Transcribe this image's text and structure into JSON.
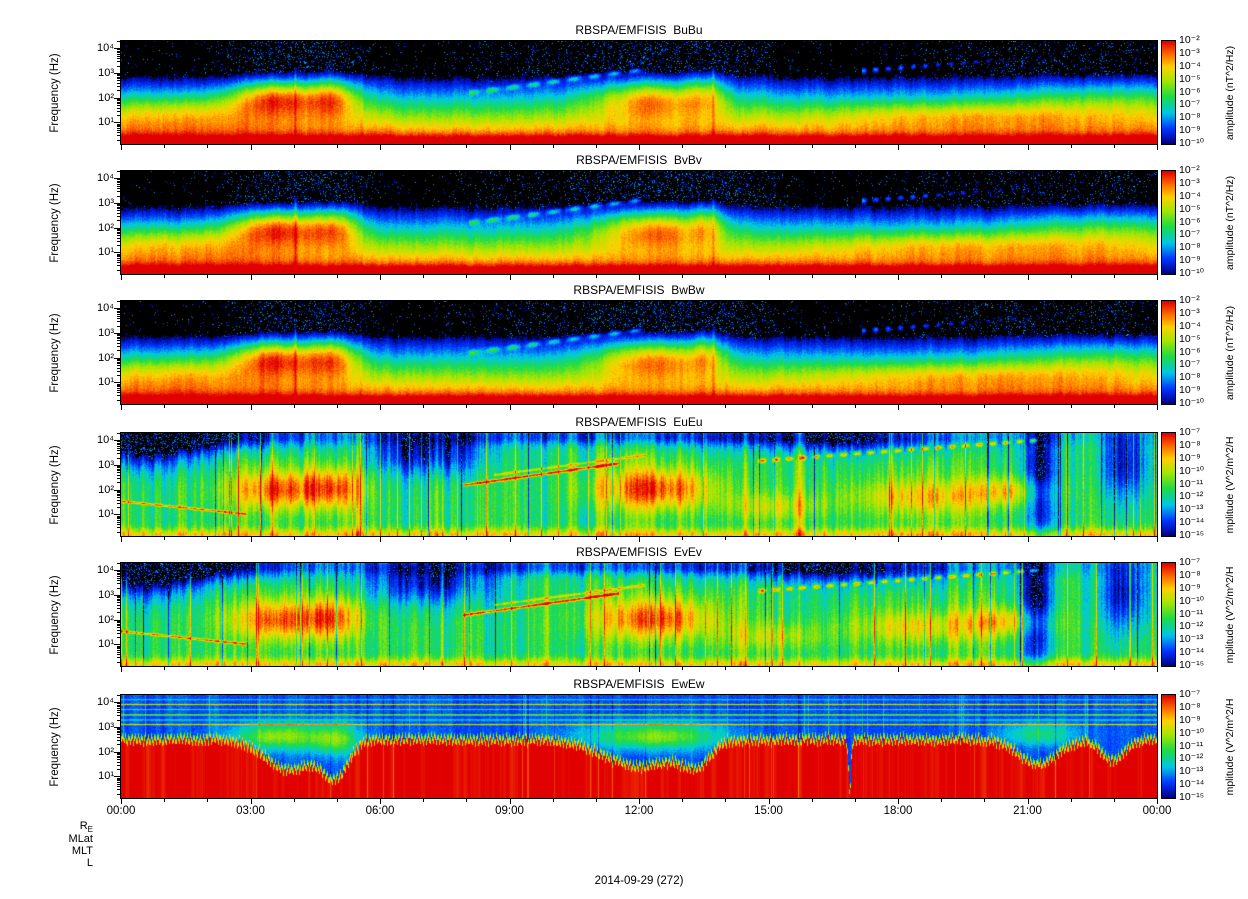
{
  "chart_data": {
    "type": "heatmap",
    "subtype": "stacked-spectrograms",
    "description": "Six 24-hour wave-power spectrograms from RBSP-A/EMFISIS: three magnetic spectral-matrix diagonal components (BuBu, BvBv, BwBw) and three electric components (EuEu, EvEv, EwEw). Log frequency axis ~2 Hz to ~20 kHz, rainbow colormap, black = below colorbar minimum.",
    "time_axis": {
      "tick_labels": [
        "00:00",
        "03:00",
        "06:00",
        "09:00",
        "12:00",
        "15:00",
        "18:00",
        "21:00",
        "00:00"
      ],
      "span_hours": 24,
      "date": "2014-09-29 (272)"
    },
    "frequency_axis": {
      "label": "Frequency (Hz)",
      "scale": "log",
      "tick_labels": [
        "10⁴",
        "10³",
        "10²",
        "10¹"
      ],
      "range_hz": [
        2,
        20000
      ]
    },
    "ephemeris_rows": [
      {
        "main": "R",
        "sub": "E"
      },
      {
        "main": "MLat",
        "sub": ""
      },
      {
        "main": "MLT",
        "sub": ""
      },
      {
        "main": "L",
        "sub": ""
      }
    ],
    "colormap": {
      "scale": "rainbow",
      "below_min_color": "#000000"
    },
    "panels": [
      {
        "id": "BuBu",
        "title": "RBSPA/EMFISIS  BuBu",
        "colorbar_label": "amplitude (nT^2/Hz)",
        "colorbar_tick_labels": [
          "10⁻²",
          "10⁻³",
          "10⁻⁴",
          "10⁻⁵",
          "10⁻⁶",
          "10⁻⁷",
          "10⁻⁸",
          "10⁻⁹",
          "10⁻¹⁰"
        ],
        "colorbar_range": [
          1e-10,
          0.01
        ]
      },
      {
        "id": "BvBv",
        "title": "RBSPA/EMFISIS  BvBv",
        "colorbar_label": "amplitude (nT^2/Hz)",
        "colorbar_tick_labels": [
          "10⁻²",
          "10⁻³",
          "10⁻⁴",
          "10⁻⁵",
          "10⁻⁶",
          "10⁻⁷",
          "10⁻⁸",
          "10⁻⁹",
          "10⁻¹⁰"
        ],
        "colorbar_range": [
          1e-10,
          0.01
        ]
      },
      {
        "id": "BwBw",
        "title": "RBSPA/EMFISIS  BwBw",
        "colorbar_label": "amplitude (nT^2/Hz)",
        "colorbar_tick_labels": [
          "10⁻²",
          "10⁻³",
          "10⁻⁴",
          "10⁻⁵",
          "10⁻⁶",
          "10⁻⁷",
          "10⁻⁸",
          "10⁻⁹",
          "10⁻¹⁰"
        ],
        "colorbar_range": [
          1e-10,
          0.01
        ]
      },
      {
        "id": "EuEu",
        "title": "RBSPA/EMFISIS  EuEu",
        "colorbar_label": "mplitude (V^2/m^2/H",
        "colorbar_tick_labels": [
          "10⁻⁷",
          "10⁻⁸",
          "10⁻⁹",
          "10⁻¹⁰",
          "10⁻¹¹",
          "10⁻¹²",
          "10⁻¹³",
          "10⁻¹⁴",
          "10⁻¹⁵"
        ],
        "colorbar_range": [
          1e-15,
          1e-07
        ]
      },
      {
        "id": "EvEv",
        "title": "RBSPA/EMFISIS  EvEv",
        "colorbar_label": "mplitude (V^2/m^2/H",
        "colorbar_tick_labels": [
          "10⁻⁷",
          "10⁻⁸",
          "10⁻⁹",
          "10⁻¹⁰",
          "10⁻¹¹",
          "10⁻¹²",
          "10⁻¹³",
          "10⁻¹⁴",
          "10⁻¹⁵"
        ],
        "colorbar_range": [
          1e-15,
          1e-07
        ]
      },
      {
        "id": "EwEw",
        "title": "RBSPA/EMFISIS  EwEw",
        "colorbar_label": "mplitude (V^2/m^2/H",
        "colorbar_tick_labels": [
          "10⁻⁷",
          "10⁻⁸",
          "10⁻⁹",
          "10⁻¹⁰",
          "10⁻¹¹",
          "10⁻¹²",
          "10⁻¹³",
          "10⁻¹⁴",
          "10⁻¹⁵"
        ],
        "colorbar_range": [
          1e-15,
          1e-07
        ]
      }
    ],
    "features": [
      {
        "panels": "all",
        "description": "Intense broadband emission ~02:30-05:30 UT between ~50 Hz and ~2 kHz (yellow/orange blobs)"
      },
      {
        "panels": "all",
        "description": "Intense broadband emission ~11:30-13:30 UT between ~50 Hz and ~2 kHz"
      },
      {
        "panels": "B components",
        "description": "High-amplitude red band below ~10 Hz all day; black above ~1 kHz except discrete emissions"
      },
      {
        "panels": "EuEu/EvEv",
        "description": "Narrowband rising emission ~08:00-11:30 UT from ~300 Hz to ~3 kHz (red streak)"
      },
      {
        "panels": "EuEu/EvEv",
        "description": "Patchy intense emission ~15:00-21:00 UT rising from ~3 kHz toward ~10 kHz"
      },
      {
        "panels": "EwEw",
        "description": "Saturated broadband signal below ~400 Hz for most of the day with fixed-frequency interference lines between ~2 and ~10 kHz"
      }
    ]
  }
}
